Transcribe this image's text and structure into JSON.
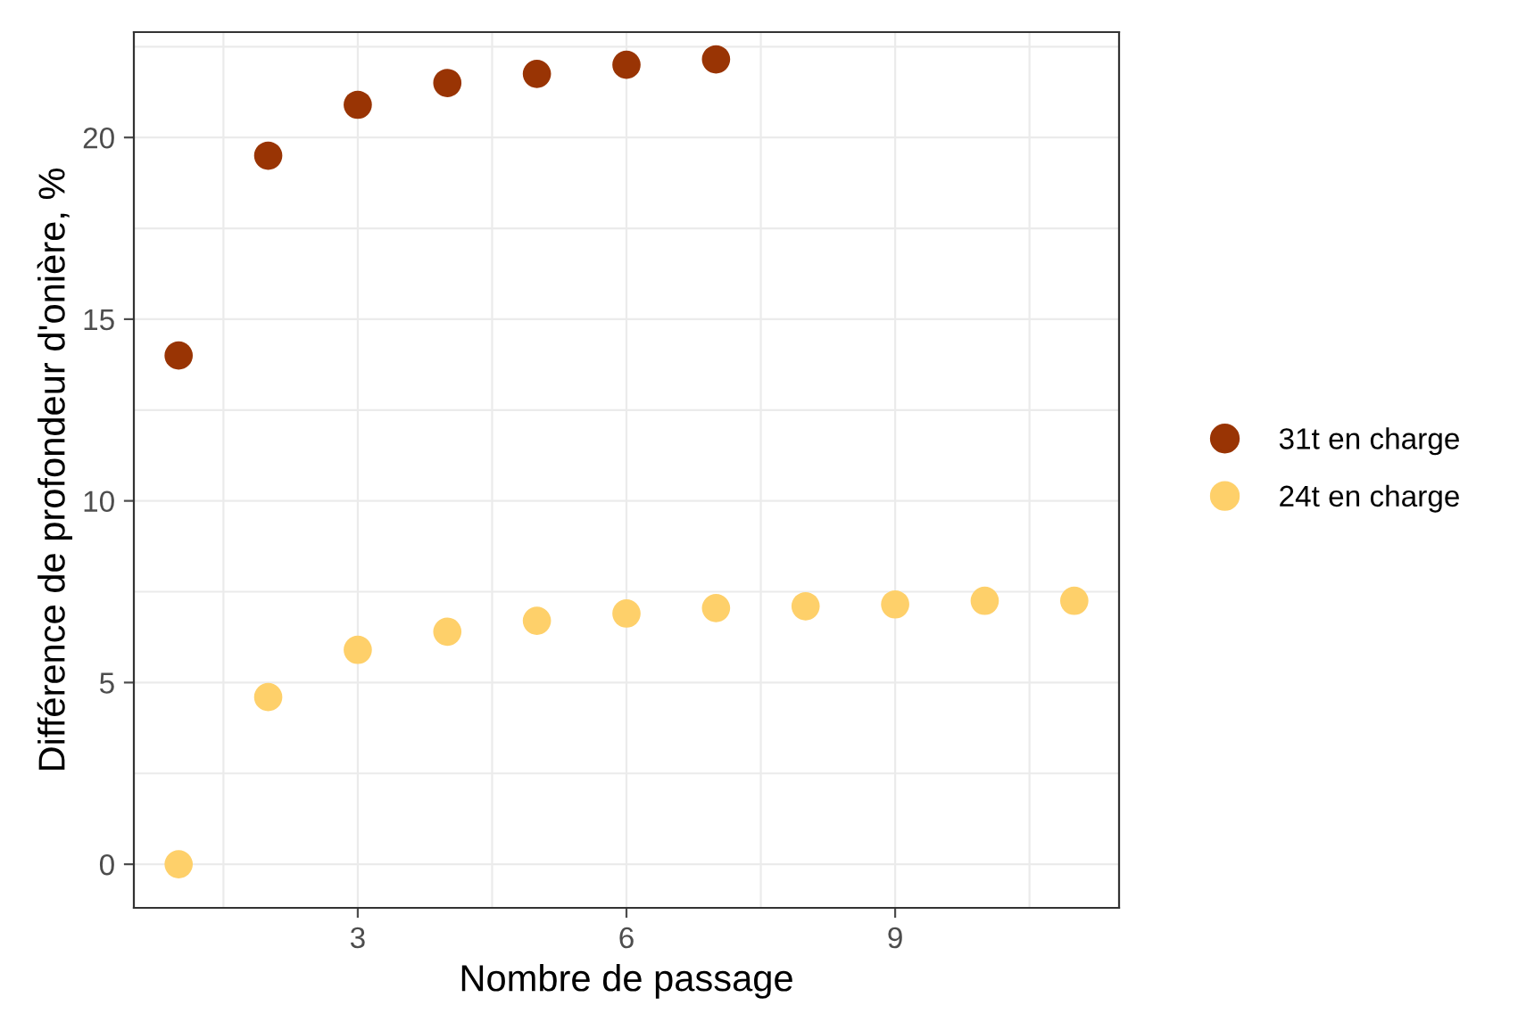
{
  "chart_data": {
    "type": "scatter",
    "xlabel": "Nombre de passage",
    "ylabel": "Différence de profondeur d'onière, %",
    "xlim": [
      0.5,
      11.5
    ],
    "ylim": [
      -1.2,
      22.9
    ],
    "xticks": [
      3,
      6,
      9
    ],
    "yticks": [
      0,
      5,
      10,
      15,
      20
    ],
    "grid": true,
    "legend": "right",
    "marker": "circle",
    "series": [
      {
        "name": "31t en charge",
        "color": "#993404",
        "x": [
          1,
          2,
          3,
          4,
          5,
          6,
          7
        ],
        "values": [
          14.0,
          19.5,
          20.9,
          21.5,
          21.75,
          22.0,
          22.15
        ]
      },
      {
        "name": "24t en charge",
        "color": "#fed06a",
        "x": [
          1,
          2,
          3,
          4,
          5,
          6,
          7,
          8,
          9,
          10,
          11
        ],
        "values": [
          0,
          4.6,
          5.9,
          6.4,
          6.7,
          6.9,
          7.05,
          7.1,
          7.15,
          7.25,
          7.25
        ]
      }
    ]
  }
}
